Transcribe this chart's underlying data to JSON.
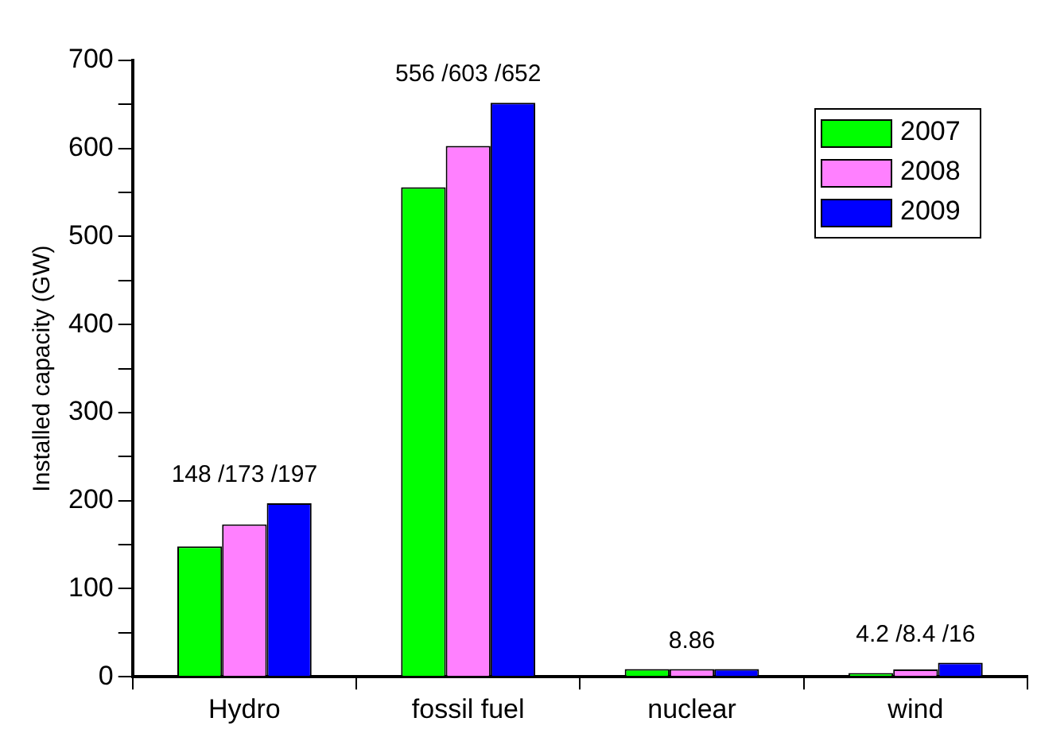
{
  "chart_data": {
    "type": "bar",
    "ylabel": "Installed capacity (GW)",
    "categories": [
      "Hydro",
      "fossil fuel",
      "nuclear",
      "wind"
    ],
    "series": [
      {
        "name": "2007",
        "color": "#00ff00",
        "values": [
          148,
          556,
          8.86,
          4.2
        ]
      },
      {
        "name": "2008",
        "color": "#ff80ff",
        "values": [
          173,
          603,
          8.86,
          8.4
        ]
      },
      {
        "name": "2009",
        "color": "#0000ff",
        "values": [
          197,
          652,
          8.86,
          16
        ]
      }
    ],
    "ylim": [
      0,
      700
    ],
    "yticks": [
      0,
      {
        "value": 50,
        "label": null
      },
      100,
      {
        "value": 150,
        "label": null
      },
      200,
      {
        "value": 250,
        "label": null
      },
      300,
      {
        "value": 350,
        "label": null
      },
      400,
      {
        "value": 450,
        "label": null
      },
      500,
      {
        "value": 550,
        "label": null
      },
      600,
      {
        "value": 650,
        "label": null
      },
      700
    ],
    "annotations": [
      "148 /173 /197",
      "556 /603 /652",
      "8.86",
      "4.2 /8.4 /16"
    ],
    "grid": false,
    "legend": "top right"
  }
}
